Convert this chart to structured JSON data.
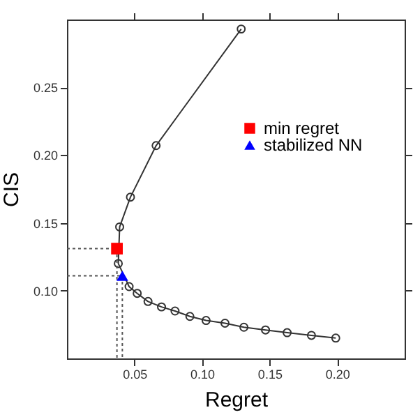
{
  "chart_data": {
    "type": "line",
    "xlabel": "Regret",
    "ylabel": "CIS",
    "xlim": [
      0,
      0.25
    ],
    "ylim": [
      0.05,
      0.3
    ],
    "xticks": [
      0.05,
      {
        "value": 0.1,
        "label": "0.10"
      },
      0.15,
      {
        "value": 0.2,
        "label": "0.20"
      }
    ],
    "yticks": [
      {
        "value": 0.1,
        "label": "0.10"
      },
      0.15,
      {
        "value": 0.2,
        "label": "0.20"
      },
      0.25
    ],
    "grid": false,
    "legend": "top right",
    "marker": "circle",
    "series": [
      {
        "color": "#333333",
        "x": [
          0.129,
          0.066,
          0.047,
          0.039,
          0.038,
          0.046,
          0.052,
          0.06,
          0.07,
          0.08,
          0.091,
          0.103,
          0.117,
          0.131,
          0.147,
          0.163,
          0.181,
          0.199
        ],
        "values": [
          0.293,
          0.207,
          0.169,
          0.147,
          0.12,
          0.103,
          0.098,
          0.092,
          0.088,
          0.085,
          0.081,
          0.078,
          0.076,
          0.073,
          0.071,
          0.069,
          0.067,
          0.065
        ]
      },
      {
        "type": "line",
        "color": "#555555",
        "marker": "none",
        "line_style": "dotted",
        "x": [
          0,
          0.037,
          0.037
        ],
        "values": [
          0.131,
          0.131,
          0.05
        ]
      },
      {
        "type": "line",
        "color": "#555555",
        "marker": "none",
        "line_style": "dotted",
        "x": [
          0,
          0.041,
          0.041
        ],
        "values": [
          0.111,
          0.111,
          0.05
        ]
      },
      {
        "type": "scatter",
        "name": "min regret",
        "color": "#ff0000",
        "marker": "square",
        "x": [
          0.037
        ],
        "values": [
          0.131
        ]
      },
      {
        "type": "scatter",
        "name": "stabilized NN",
        "color": "#0000ff",
        "marker": "triangle",
        "x": [
          0.041
        ],
        "values": [
          0.111
        ]
      }
    ]
  }
}
